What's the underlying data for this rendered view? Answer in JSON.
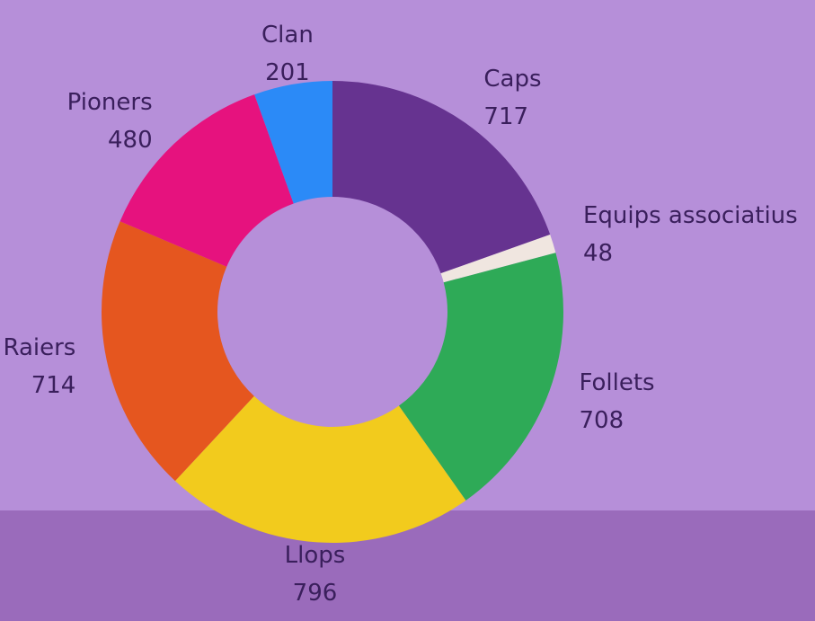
{
  "chart_data": {
    "type": "donut",
    "categories": [
      "Caps",
      "Equips associatius",
      "Follets",
      "Llops",
      "Raiers",
      "Pioners",
      "Clan"
    ],
    "values": [
      717,
      48,
      708,
      796,
      714,
      480,
      201
    ],
    "colors": [
      "#663390",
      "#f0e6e0",
      "#2eaa57",
      "#f2cb1d",
      "#e5561f",
      "#e6127e",
      "#2b8af7"
    ]
  }
}
